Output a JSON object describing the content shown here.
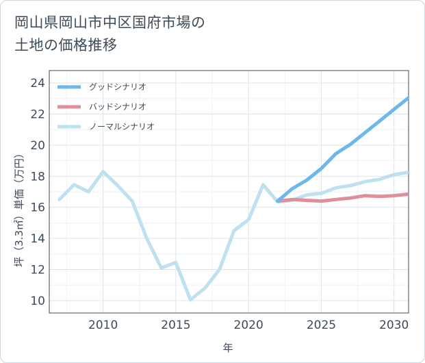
{
  "chart_data": {
    "type": "line",
    "title_line1": "岡山県岡山市中区国府市場の",
    "title_line2": "土地の価格推移",
    "xlabel": "年",
    "ylabel": "坪（3.3㎡）単価（万円）",
    "xlim": [
      2006.3,
      2031
    ],
    "ylim": [
      9.2,
      24.8
    ],
    "x_ticks": [
      2010,
      2015,
      2020,
      2025,
      2030
    ],
    "y_ticks": [
      10,
      12,
      14,
      16,
      18,
      20,
      22,
      24
    ],
    "grid": true,
    "legend_position": "top-left",
    "series": [
      {
        "name": "グッドシナリオ",
        "color": "#6bb8ea",
        "x": [
          2022,
          2023,
          2024,
          2025,
          2026,
          2027,
          2028,
          2029,
          2030,
          2031
        ],
        "values": [
          16.4,
          17.2,
          17.75,
          18.5,
          19.45,
          20.05,
          20.8,
          21.55,
          22.3,
          23.05
        ]
      },
      {
        "name": "バッドシナリオ",
        "color": "#e08f98",
        "x": [
          2022,
          2023,
          2024,
          2025,
          2026,
          2027,
          2028,
          2029,
          2030,
          2031
        ],
        "values": [
          16.4,
          16.5,
          16.45,
          16.4,
          16.5,
          16.6,
          16.75,
          16.7,
          16.75,
          16.85
        ]
      },
      {
        "name": "ノーマルシナリオ",
        "color": "#bfe0ef",
        "x": [
          2007,
          2008,
          2009,
          2010,
          2011,
          2012,
          2013,
          2014,
          2015,
          2016,
          2017,
          2018,
          2019,
          2020,
          2021,
          2022,
          2023,
          2024,
          2025,
          2026,
          2027,
          2028,
          2029,
          2030,
          2031
        ],
        "values": [
          16.5,
          17.45,
          17.0,
          18.3,
          17.4,
          16.4,
          14.0,
          12.1,
          12.45,
          10.05,
          10.8,
          12.0,
          14.5,
          15.2,
          17.45,
          16.35,
          16.45,
          16.8,
          16.9,
          17.25,
          17.4,
          17.65,
          17.8,
          18.1,
          18.25
        ]
      }
    ]
  }
}
